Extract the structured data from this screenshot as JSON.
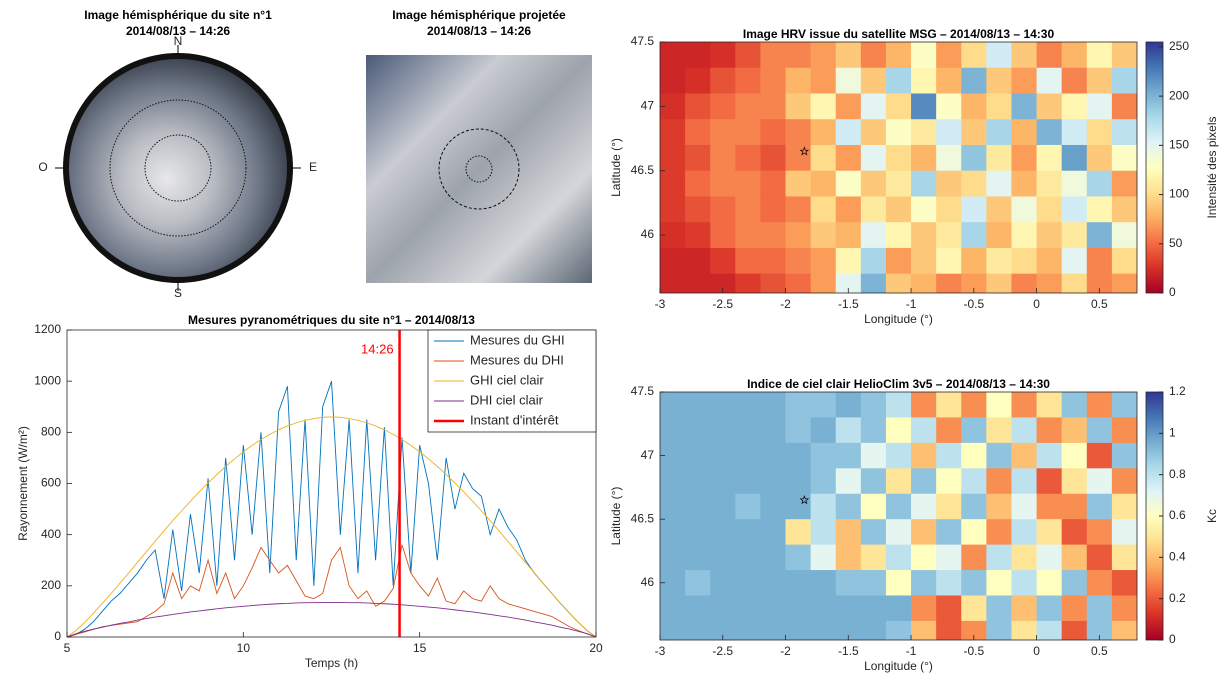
{
  "chart_data": [
    {
      "type": "image",
      "title": [
        "Image hémisphérique du site n°1",
        "2014/08/13 – 14:26"
      ],
      "compass": [
        "N",
        "E",
        "S",
        "O"
      ]
    },
    {
      "type": "image",
      "title": [
        "Image hémisphérique projetée",
        "2014/08/13 – 14:26"
      ]
    },
    {
      "type": "line",
      "title": "Mesures pyranométriques du site n°1 – 2014/08/13",
      "xlabel": "Temps (h)",
      "ylabel": "Rayonnement (W/m²)",
      "xlim": [
        5,
        20
      ],
      "ylim": [
        0,
        1200
      ],
      "xticks": [
        5,
        10,
        15,
        20
      ],
      "yticks": [
        0,
        200,
        400,
        600,
        800,
        1000,
        1200
      ],
      "x": [
        5,
        5.25,
        5.5,
        5.75,
        6,
        6.25,
        6.5,
        6.75,
        7,
        7.25,
        7.5,
        7.75,
        8,
        8.25,
        8.5,
        8.75,
        9,
        9.25,
        9.5,
        9.75,
        10,
        10.25,
        10.5,
        10.75,
        11,
        11.25,
        11.5,
        11.75,
        12,
        12.25,
        12.5,
        12.75,
        13,
        13.25,
        13.5,
        13.75,
        14,
        14.25,
        14.5,
        14.75,
        15,
        15.25,
        15.5,
        15.75,
        16,
        16.25,
        16.5,
        16.75,
        17,
        17.25,
        17.5,
        17.75,
        18,
        18.25,
        18.5,
        18.75,
        19,
        19.25,
        19.5,
        19.75,
        20
      ],
      "series": [
        {
          "name": "Mesures du GHI",
          "color": "#0072bd",
          "values": [
            0,
            10,
            30,
            60,
            100,
            140,
            170,
            210,
            250,
            300,
            340,
            150,
            420,
            180,
            480,
            250,
            620,
            200,
            700,
            300,
            750,
            400,
            800,
            250,
            880,
            980,
            300,
            850,
            200,
            900,
            1000,
            400,
            850,
            250,
            850,
            300,
            820,
            200,
            780,
            250,
            750,
            600,
            300,
            700,
            500,
            640,
            580,
            550,
            400,
            500,
            430,
            380,
            300,
            250,
            210,
            170,
            130,
            93,
            57,
            25,
            0
          ]
        },
        {
          "name": "Mesures du DHI",
          "color": "#d95319",
          "values": [
            0,
            10,
            20,
            30,
            40,
            45,
            50,
            55,
            60,
            80,
            100,
            130,
            250,
            150,
            200,
            180,
            300,
            170,
            250,
            150,
            200,
            270,
            350,
            300,
            250,
            280,
            220,
            160,
            150,
            170,
            300,
            350,
            200,
            150,
            180,
            120,
            140,
            190,
            360,
            250,
            200,
            160,
            230,
            140,
            130,
            180,
            150,
            140,
            200,
            150,
            130,
            120,
            110,
            100,
            90,
            80,
            60,
            40,
            25,
            12,
            0
          ]
        },
        {
          "name": "GHI ciel clair",
          "color": "#edb120",
          "values": [
            0,
            25,
            57,
            93,
            131,
            170,
            210,
            251,
            292,
            333,
            374,
            415,
            455,
            493,
            531,
            567,
            602,
            635,
            667,
            696,
            724,
            749,
            772,
            792,
            810,
            825,
            837,
            847,
            854,
            859,
            860,
            859,
            854,
            847,
            837,
            825,
            810,
            792,
            772,
            749,
            724,
            696,
            667,
            635,
            602,
            567,
            531,
            493,
            455,
            415,
            374,
            333,
            292,
            251,
            210,
            170,
            131,
            93,
            57,
            25,
            0
          ]
        },
        {
          "name": "DHI ciel clair",
          "color": "#7e2f8e",
          "values": [
            0,
            13,
            22,
            31,
            38,
            46,
            53,
            59,
            66,
            72,
            78,
            83,
            88,
            93,
            98,
            102,
            106,
            110,
            114,
            117,
            120,
            123,
            126,
            128,
            130,
            131,
            133,
            134,
            134,
            135,
            135,
            135,
            134,
            134,
            133,
            131,
            130,
            128,
            126,
            123,
            120,
            117,
            114,
            110,
            106,
            102,
            98,
            93,
            88,
            83,
            78,
            72,
            66,
            59,
            53,
            46,
            38,
            31,
            22,
            13,
            0
          ]
        }
      ],
      "vline": {
        "name": "Instant d'intérêt",
        "x": 14.43,
        "label": "14:26",
        "color": "#ff0000"
      }
    },
    {
      "type": "heatmap",
      "title": "Image HRV issue du satellite MSG – 2014/08/13 – 14:30",
      "xlabel": "Longitude (°)",
      "ylabel": "Latitude (°)",
      "colorbar_label": "Intensité des pixels",
      "colormap": "RdYlBu",
      "xlim": [
        -3,
        0.8
      ],
      "ylim": [
        45.55,
        47.5
      ],
      "xticks": [
        -3,
        -2.5,
        -2,
        -1.5,
        -1,
        -0.5,
        0,
        0.5
      ],
      "yticks": [
        46,
        46.5,
        47,
        47.5
      ],
      "clim": [
        0,
        255
      ],
      "cticks": [
        0,
        50,
        100,
        150,
        200,
        250
      ],
      "x": [
        -2.9,
        -2.7,
        -2.5,
        -2.3,
        -2.1,
        -1.9,
        -1.7,
        -1.5,
        -1.3,
        -1.1,
        -0.9,
        -0.7,
        -0.5,
        -0.3,
        -0.1,
        0.1,
        0.3,
        0.5,
        0.7
      ],
      "y": [
        47.4,
        47.2,
        47,
        46.8,
        46.6,
        46.4,
        46.2,
        46,
        45.8,
        45.6
      ],
      "values": [
        [
          20,
          20,
          25,
          40,
          60,
          60,
          70,
          90,
          60,
          80,
          130,
          70,
          100,
          160,
          90,
          60,
          80,
          120,
          90
        ],
        [
          20,
          25,
          40,
          50,
          60,
          80,
          70,
          140,
          90,
          180,
          120,
          80,
          200,
          90,
          70,
          150,
          60,
          90,
          180
        ],
        [
          25,
          40,
          50,
          60,
          60,
          90,
          120,
          70,
          150,
          100,
          220,
          130,
          80,
          100,
          200,
          90,
          120,
          150,
          60
        ],
        [
          30,
          50,
          60,
          60,
          50,
          60,
          80,
          160,
          90,
          130,
          110,
          160,
          90,
          180,
          80,
          200,
          160,
          100,
          170
        ],
        [
          30,
          40,
          60,
          50,
          40,
          60,
          100,
          70,
          150,
          100,
          80,
          140,
          190,
          110,
          70,
          120,
          210,
          90,
          130
        ],
        [
          30,
          50,
          60,
          60,
          50,
          90,
          80,
          130,
          90,
          110,
          180,
          90,
          100,
          150,
          80,
          110,
          140,
          180,
          70
        ],
        [
          30,
          40,
          50,
          60,
          50,
          60,
          100,
          70,
          110,
          90,
          130,
          100,
          160,
          90,
          140,
          100,
          160,
          120,
          90
        ],
        [
          25,
          30,
          50,
          60,
          60,
          70,
          90,
          80,
          150,
          120,
          90,
          110,
          180,
          80,
          120,
          90,
          110,
          200,
          140
        ],
        [
          20,
          20,
          30,
          50,
          50,
          60,
          70,
          120,
          180,
          70,
          90,
          120,
          80,
          110,
          100,
          80,
          150,
          60,
          100
        ],
        [
          20,
          20,
          20,
          30,
          40,
          50,
          70,
          150,
          200,
          90,
          80,
          60,
          70,
          90,
          60,
          70,
          100,
          60,
          70
        ]
      ],
      "marker": {
        "x": -1.85,
        "y": 46.65
      }
    },
    {
      "type": "heatmap",
      "title": "Indice de ciel clair HelioClim 3v5 – 2014/08/13 – 14:30",
      "xlabel": "Longitude (°)",
      "ylabel": "Latitude (°)",
      "colorbar_label": "Kc",
      "colormap": "RdYlBu",
      "xlim": [
        -3,
        0.8
      ],
      "ylim": [
        45.55,
        47.5
      ],
      "xticks": [
        -3,
        -2.5,
        -2,
        -1.5,
        -1,
        -0.5,
        0,
        0.5
      ],
      "yticks": [
        46,
        46.5,
        47,
        47.5
      ],
      "clim": [
        0,
        1.2
      ],
      "cticks": [
        0,
        0.2,
        0.4,
        0.6,
        0.8,
        1,
        1.2
      ],
      "x": [
        -2.9,
        -2.7,
        -2.5,
        -2.3,
        -2.1,
        -1.9,
        -1.7,
        -1.5,
        -1.3,
        -1.1,
        -0.9,
        -0.7,
        -0.5,
        -0.3,
        -0.1,
        0.1,
        0.3,
        0.5,
        0.7
      ],
      "y": [
        47.4,
        47.2,
        47,
        46.8,
        46.6,
        46.4,
        46.2,
        46,
        45.8,
        45.6
      ],
      "values": [
        [
          0.95,
          0.95,
          0.95,
          0.95,
          0.95,
          0.9,
          0.9,
          0.95,
          0.9,
          0.8,
          0.3,
          0.5,
          0.3,
          0.6,
          0.3,
          0.5,
          0.9,
          0.3,
          0.9
        ],
        [
          0.95,
          0.95,
          0.95,
          0.95,
          0.95,
          0.9,
          0.95,
          0.8,
          0.9,
          0.6,
          0.8,
          0.3,
          0.9,
          0.5,
          0.8,
          0.3,
          0.4,
          0.9,
          0.3
        ],
        [
          0.95,
          0.95,
          0.95,
          0.95,
          0.95,
          0.95,
          0.9,
          0.9,
          0.7,
          0.8,
          0.4,
          0.8,
          0.6,
          0.9,
          0.4,
          0.8,
          0.6,
          0.2,
          0.9
        ],
        [
          0.95,
          0.95,
          0.95,
          0.95,
          0.95,
          0.95,
          0.9,
          0.7,
          0.9,
          0.5,
          0.9,
          0.6,
          0.8,
          0.3,
          0.8,
          0.2,
          0.5,
          0.7,
          0.3
        ],
        [
          0.95,
          0.95,
          0.95,
          0.9,
          0.95,
          0.95,
          0.8,
          0.9,
          0.6,
          0.9,
          0.7,
          0.5,
          0.9,
          0.4,
          0.7,
          0.3,
          0.3,
          0.9,
          0.5
        ],
        [
          0.95,
          0.95,
          0.95,
          0.95,
          0.95,
          0.5,
          0.8,
          0.4,
          0.9,
          0.7,
          0.4,
          0.9,
          0.6,
          0.3,
          0.8,
          0.5,
          0.2,
          0.3,
          0.7
        ],
        [
          0.95,
          0.95,
          0.95,
          0.95,
          0.95,
          0.9,
          0.7,
          0.4,
          0.5,
          0.8,
          0.6,
          0.7,
          0.3,
          0.8,
          0.5,
          0.7,
          0.4,
          0.2,
          0.5
        ],
        [
          0.95,
          0.9,
          0.95,
          0.95,
          0.95,
          0.95,
          0.95,
          0.9,
          0.9,
          0.6,
          0.9,
          0.8,
          0.9,
          0.6,
          0.8,
          0.6,
          0.9,
          0.3,
          0.2
        ],
        [
          0.95,
          0.95,
          0.95,
          0.95,
          0.95,
          0.95,
          0.95,
          0.95,
          0.95,
          0.95,
          0.3,
          0.2,
          0.5,
          0.9,
          0.4,
          0.9,
          0.3,
          0.9,
          0.3
        ],
        [
          0.95,
          0.95,
          0.95,
          0.95,
          0.95,
          0.95,
          0.95,
          0.95,
          0.95,
          0.9,
          0.4,
          0.2,
          0.3,
          0.9,
          0.5,
          0.8,
          0.2,
          0.9,
          0.4
        ]
      ],
      "marker": {
        "x": -1.85,
        "y": 46.65
      }
    }
  ]
}
